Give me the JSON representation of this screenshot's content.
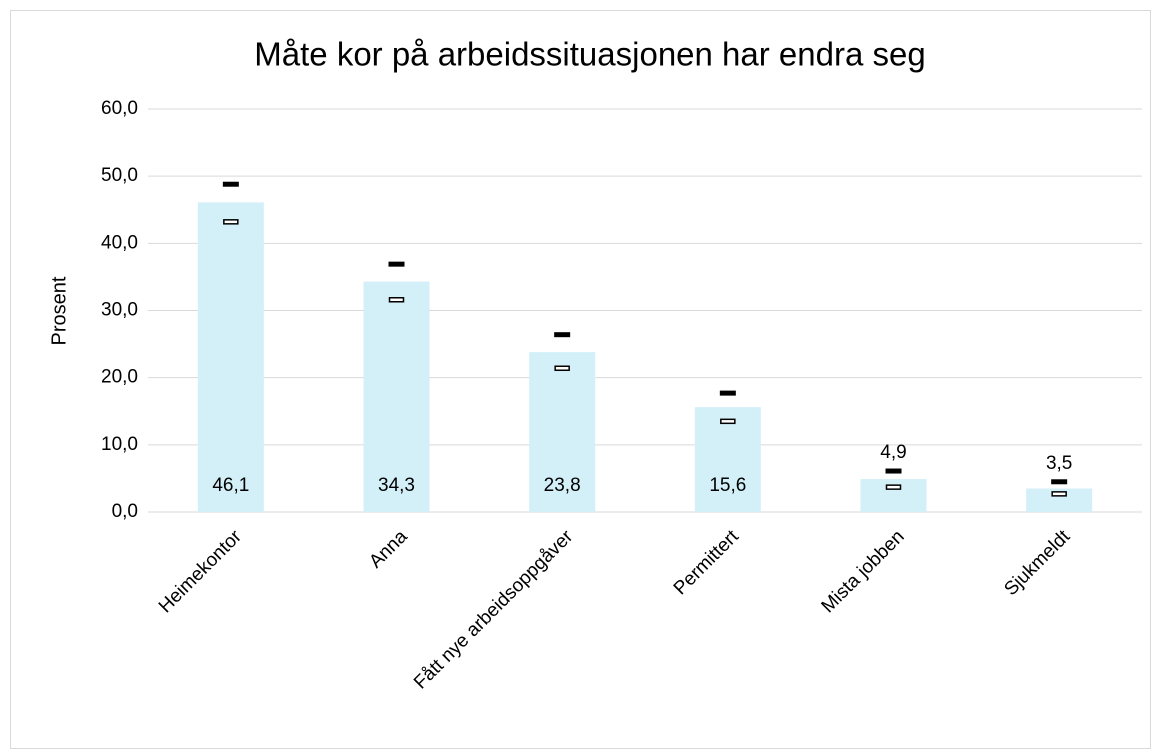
{
  "chart_data": {
    "type": "bar",
    "title": "Måte kor på arbeidssituasjonen har endra seg",
    "y_label": "Prosent",
    "categories": [
      "Heimekontor",
      "Anna",
      "Fått nye arbeidsoppgåver",
      "Permittert",
      "Mista jobben",
      "Sjukmeldt"
    ],
    "values": [
      46.1,
      34.3,
      23.8,
      15.6,
      4.9,
      3.5
    ],
    "value_labels": [
      "46,1",
      "34,3",
      "23,8",
      "15,6",
      "4,9",
      "3,5"
    ],
    "upper": [
      48.8,
      36.9,
      26.4,
      17.7,
      6.1,
      4.5
    ],
    "lower": [
      43.2,
      31.6,
      21.4,
      13.5,
      3.7,
      2.7
    ],
    "color": "#d3eff8",
    "ylim": [
      0,
      60
    ],
    "yticks": [
      {
        "value": 0,
        "label": "0,0"
      },
      {
        "value": 10,
        "label": "10,0"
      },
      {
        "value": 20,
        "label": "20,0"
      },
      {
        "value": 30,
        "label": "30,0"
      },
      {
        "value": 40,
        "label": "40,0"
      },
      {
        "value": 50,
        "label": "50,0"
      },
      {
        "value": 60,
        "label": "60,0"
      }
    ],
    "grid": true
  }
}
